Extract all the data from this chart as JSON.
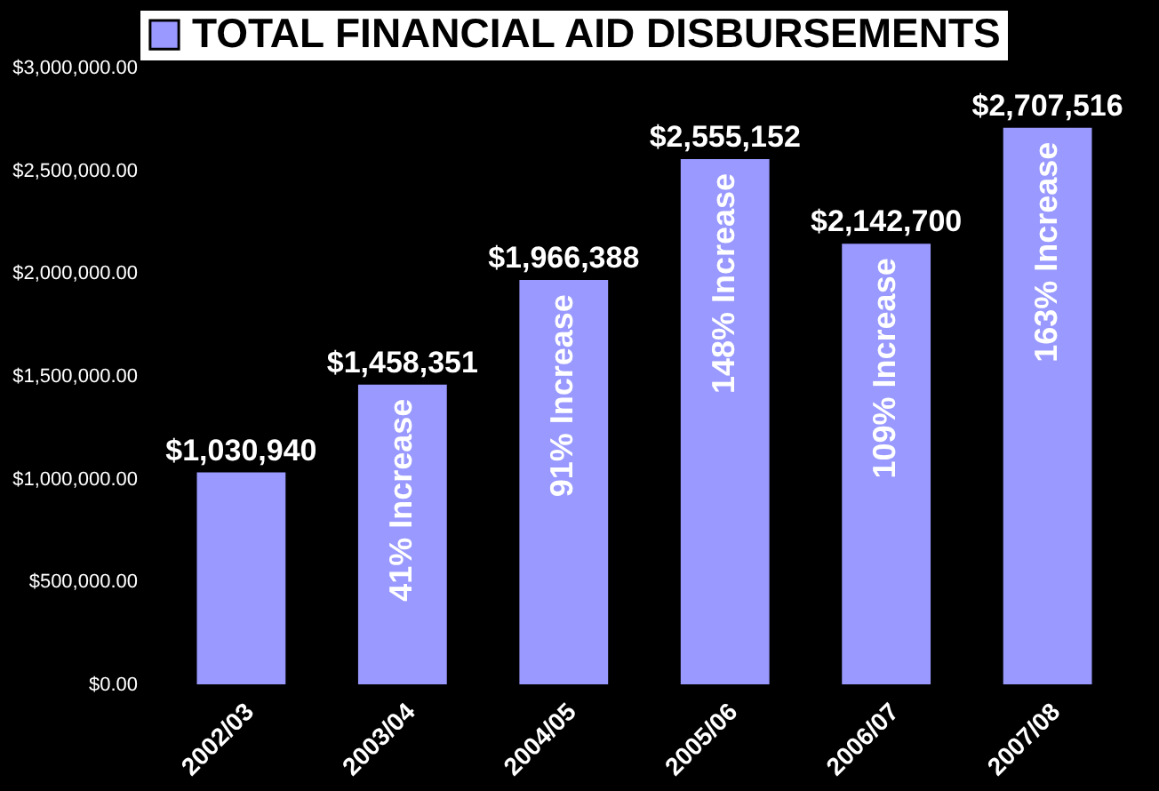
{
  "chart_data": {
    "type": "bar",
    "categories": [
      "2002/03",
      "2003/04",
      "2004/05",
      "2005/06",
      "2006/07",
      "2007/08"
    ],
    "series": [
      {
        "name": "TOTAL FINANCIAL AID DISBURSEMENTS",
        "color": "#9999ff",
        "values": [
          1030940,
          1458351,
          1966388,
          2555152,
          2142700,
          2707516
        ],
        "value_labels": [
          "$1,030,940",
          "$1,458,351",
          "$1,966,388",
          "$2,555,152",
          "$2,142,700",
          "$2,707,516"
        ]
      }
    ],
    "ylim": [
      0,
      3000000
    ],
    "yticks": [
      {
        "value": 0,
        "label": "$0.00"
      },
      {
        "value": 500000,
        "label": "$500,000.00"
      },
      {
        "value": 1000000,
        "label": "$1,000,000.00"
      },
      {
        "value": 1500000,
        "label": "$1,500,000.00"
      },
      {
        "value": 2000000,
        "label": "$2,000,000.00"
      },
      {
        "value": 2500000,
        "label": "$2,500,000.00"
      },
      {
        "value": 3000000,
        "label": "$3,000,000.00"
      }
    ],
    "grid": false,
    "legend": "top",
    "annotations": [
      {
        "text": "41% Increase",
        "x": "2003/04",
        "y": 1458351
      },
      {
        "text": "91% Increase",
        "x": "2004/05",
        "y": 1966388
      },
      {
        "text": "148% Increase",
        "x": "2005/06",
        "y": 2555152
      },
      {
        "text": "109% Increase",
        "x": "2006/07",
        "y": 2142700
      },
      {
        "text": "163% Increase",
        "x": "2007/08",
        "y": 2707516
      }
    ]
  }
}
